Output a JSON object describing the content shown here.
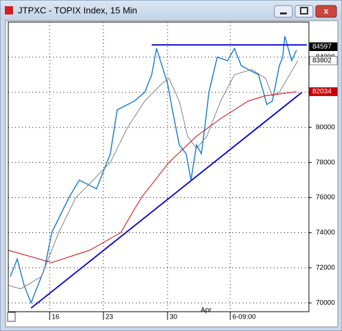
{
  "window": {
    "title": "JTPXC - TOPIX Index, 15 Min"
  },
  "chart_data": {
    "type": "line",
    "xlim": [
      0,
      436
    ],
    "ylim": [
      69500,
      86000
    ],
    "xticks": [
      {
        "value": 60,
        "label": "16"
      },
      {
        "value": 138,
        "label": "23"
      },
      {
        "value": 231,
        "label": "30"
      },
      {
        "value": 322,
        "label": "6-09:00"
      }
    ],
    "month_ticks": [
      {
        "value": 276,
        "label": "Apr"
      }
    ],
    "yticks": [
      70000,
      72000,
      74000,
      76000,
      78000,
      80000,
      82000,
      84000
    ],
    "grid": true,
    "series": [
      {
        "color": "#1e7fd6",
        "x": [
          3,
          13,
          23,
          33,
          53,
          63,
          88,
          103,
          128,
          148,
          158,
          183,
          198,
          208,
          215,
          223,
          231,
          238,
          248,
          258,
          265,
          273,
          280,
          285,
          291,
          303,
          318,
          328,
          338,
          353,
          363,
          368,
          375,
          383,
          393,
          398,
          401,
          406,
          411,
          418
        ],
        "values": [
          71500,
          72500,
          71000,
          70000,
          72000,
          74000,
          76000,
          77000,
          76500,
          78500,
          81000,
          81500,
          82000,
          83000,
          84500,
          83500,
          82500,
          81000,
          79000,
          78500,
          77000,
          79000,
          78500,
          80000,
          82000,
          84000,
          83800,
          84500,
          83500,
          83200,
          83000,
          82300,
          81300,
          81500,
          83500,
          84000,
          85200,
          84500,
          83800,
          84400
        ]
      },
      {
        "color": "#808080",
        "x": [
          0,
          18,
          48,
          73,
          98,
          123,
          148,
          173,
          198,
          223,
          233,
          248,
          260,
          273,
          288,
          308,
          328,
          353,
          373,
          383,
          393,
          408,
          420
        ],
        "values": [
          71000,
          70800,
          71500,
          74000,
          76000,
          77000,
          78000,
          80000,
          81500,
          82500,
          82800,
          81500,
          79500,
          78800,
          79500,
          81500,
          83000,
          83300,
          82800,
          81800,
          82000,
          83000,
          83800
        ]
      },
      {
        "color": "#cc0000",
        "x": [
          0,
          63,
          118,
          163,
          193,
          233,
          273,
          308,
          348,
          373,
          418
        ],
        "values": [
          73000,
          72300,
          73000,
          74000,
          76000,
          78000,
          79500,
          80500,
          81500,
          81800,
          82034
        ]
      }
    ],
    "trendlines": [
      {
        "color": "#1010d0",
        "x": [
          208,
          433
        ],
        "values": [
          84700,
          84700
        ]
      },
      {
        "color": "#1010d0",
        "x": [
          33,
          426
        ],
        "values": [
          69700,
          82000
        ]
      }
    ],
    "price_labels": [
      {
        "value": 84597,
        "color": "#000000"
      },
      {
        "value": 83802,
        "color": "#ffffff"
      },
      {
        "value": 82034,
        "color": "#cc0000"
      }
    ]
  }
}
